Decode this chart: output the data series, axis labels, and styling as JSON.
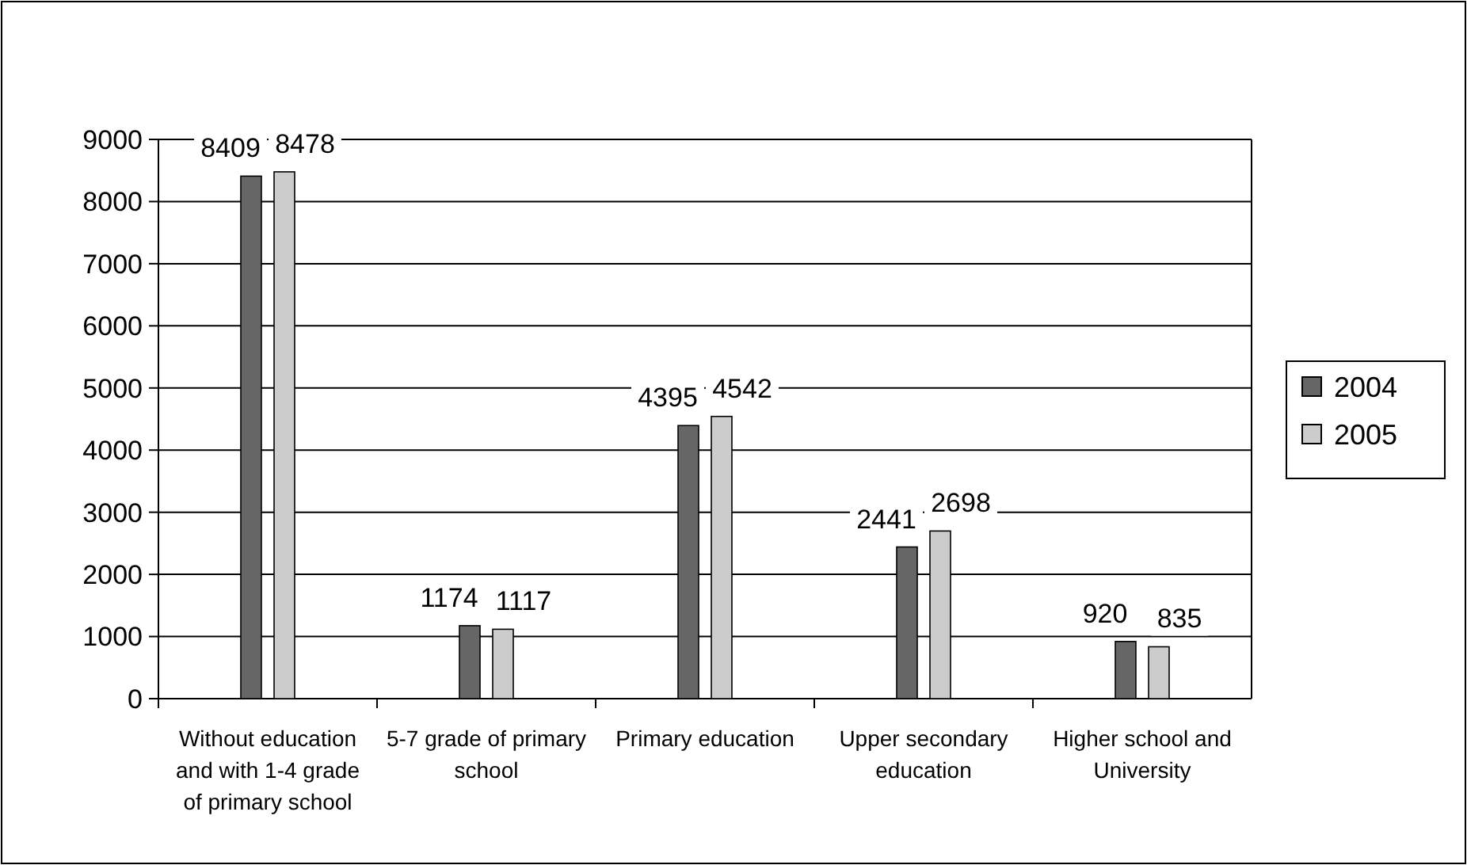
{
  "chart_data": {
    "type": "bar",
    "categories": [
      "Without education and with 1-4 grade of primary school",
      "5-7 grade of primary school",
      "Primary education",
      "Upper secondary education",
      "Higher school and University"
    ],
    "series": [
      {
        "name": "2004",
        "color": "#666666",
        "values": [
          8409,
          1174,
          4395,
          2441,
          920
        ]
      },
      {
        "name": "2005",
        "color": "#cccccc",
        "values": [
          8478,
          1117,
          4542,
          2698,
          835
        ]
      }
    ],
    "ylim": [
      0,
      9000
    ],
    "yticks": [
      0,
      1000,
      2000,
      3000,
      4000,
      5000,
      6000,
      7000,
      8000,
      9000
    ],
    "grid": "y",
    "legend": "right",
    "data_labels": true
  }
}
